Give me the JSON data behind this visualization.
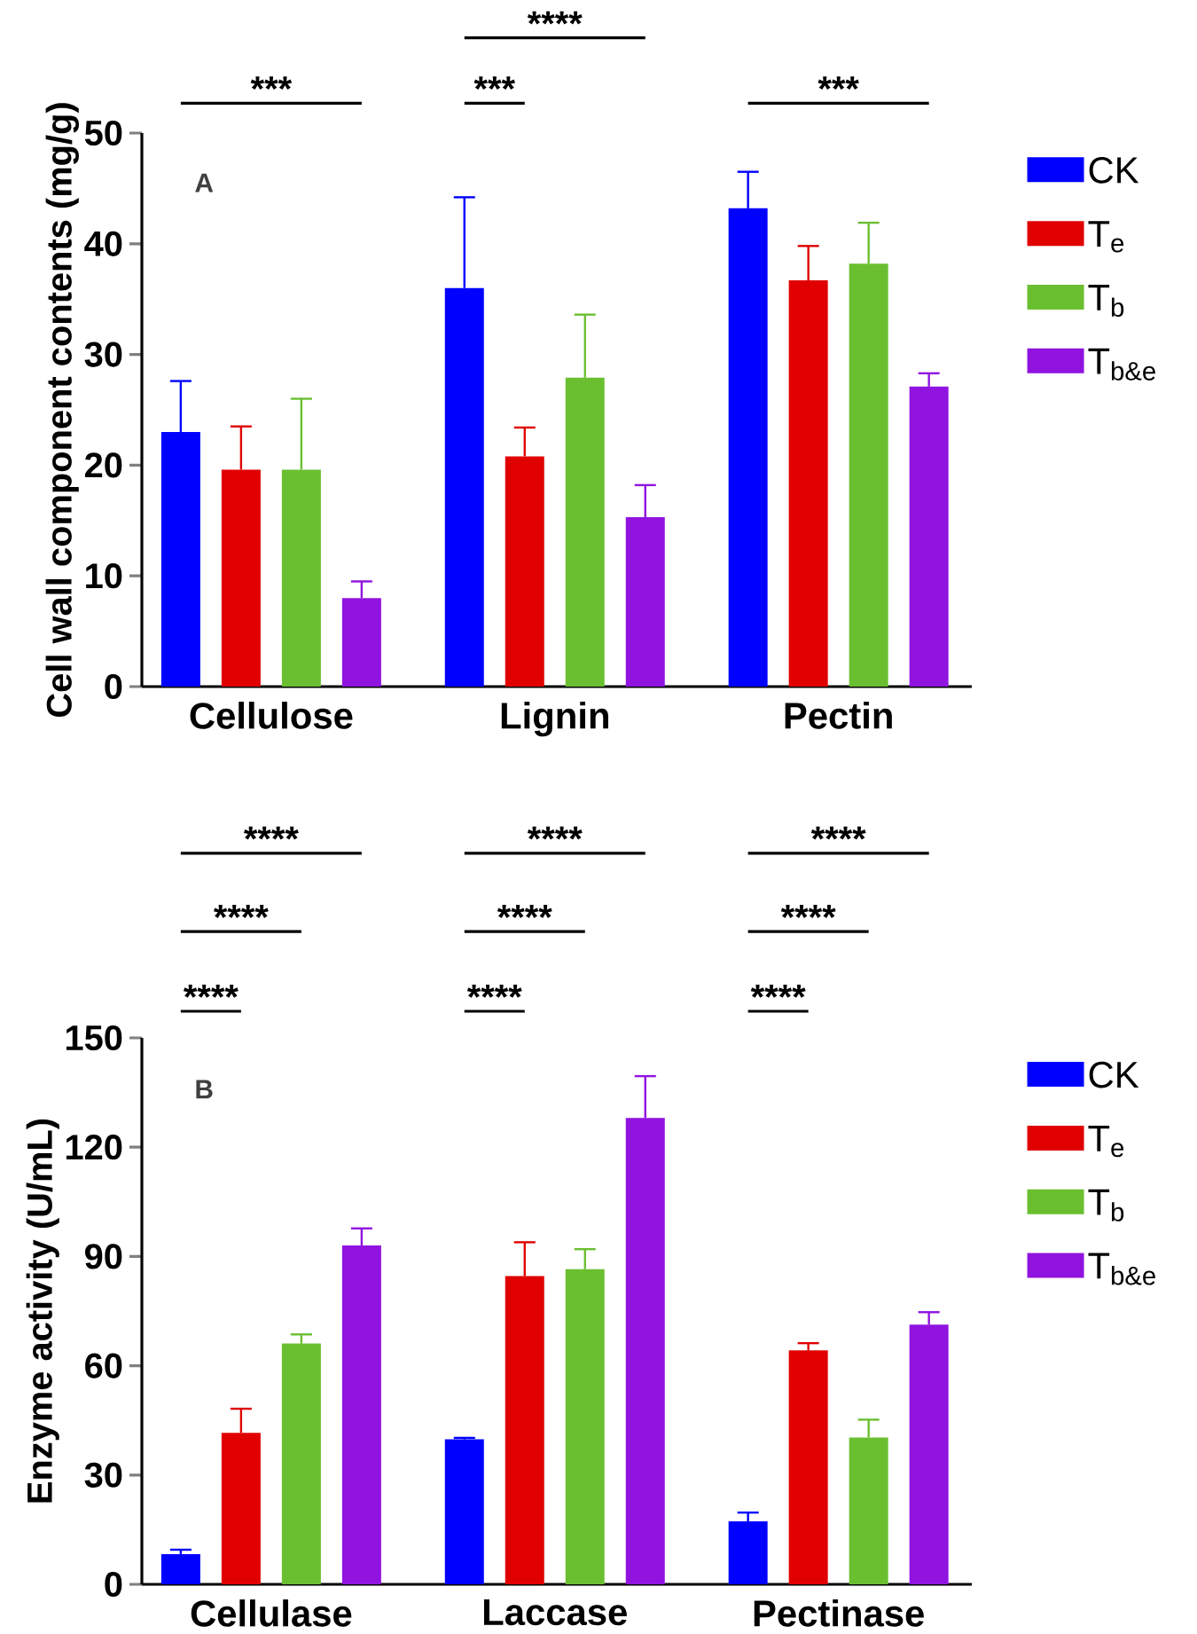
{
  "chart_data": [
    {
      "type": "bar",
      "categories": [
        "Cellulose",
        "Lignin",
        "Pectin"
      ],
      "ylabel": "Cell wall component contents (mg/g)",
      "ylim": [
        0,
        50
      ],
      "yticks": [
        0,
        10,
        20,
        30,
        40,
        50
      ],
      "legend": "right",
      "series": [
        {
          "name": "CK",
          "color": "#0000ff",
          "values": [
            23.0,
            36.0,
            43.2
          ],
          "errors": [
            4.6,
            8.2,
            3.3
          ]
        },
        {
          "name": "T$_{e}$",
          "color": "#e00000",
          "values": [
            19.6,
            20.8,
            36.7
          ],
          "errors": [
            3.9,
            2.6,
            3.1
          ]
        },
        {
          "name": "T$_{b}$",
          "color": "#6abf30",
          "values": [
            19.6,
            27.9,
            38.2
          ],
          "errors": [
            6.4,
            5.7,
            3.7
          ]
        },
        {
          "name": "T$_{b&e}$",
          "color": "#9013e0",
          "values": [
            8.0,
            15.3,
            27.1
          ],
          "errors": [
            1.5,
            2.9,
            1.2
          ]
        }
      ],
      "annotations": [
        "A",
        "***",
        "***",
        "****",
        "***"
      ]
    },
    {
      "type": "bar",
      "categories": [
        "Cellulase",
        "Laccase",
        "Pectinase"
      ],
      "ylabel": "Enzyme activity (U/mL)",
      "ylim": [
        0,
        150
      ],
      "yticks": [
        0,
        30,
        60,
        90,
        120,
        150
      ],
      "legend": "right",
      "series": [
        {
          "name": "CK",
          "color": "#0000ff",
          "values": [
            8.3,
            39.8,
            17.3
          ],
          "errors": [
            1.2,
            0.4,
            2.4
          ]
        },
        {
          "name": "T$_{e}$",
          "color": "#e00000",
          "values": [
            41.6,
            84.6,
            64.2
          ],
          "errors": [
            6.6,
            9.3,
            2.0
          ]
        },
        {
          "name": "T$_{b}$",
          "color": "#6abf30",
          "values": [
            66.1,
            86.5,
            40.3
          ],
          "errors": [
            2.5,
            5.5,
            4.9
          ]
        },
        {
          "name": "T$_{b&e}$",
          "color": "#9013e0",
          "values": [
            93.0,
            128.0,
            71.3
          ],
          "errors": [
            4.7,
            11.5,
            3.4
          ]
        }
      ],
      "annotations": [
        "B",
        "****",
        "****",
        "****",
        "****",
        "****",
        "****",
        "****",
        "****",
        "****"
      ]
    }
  ]
}
